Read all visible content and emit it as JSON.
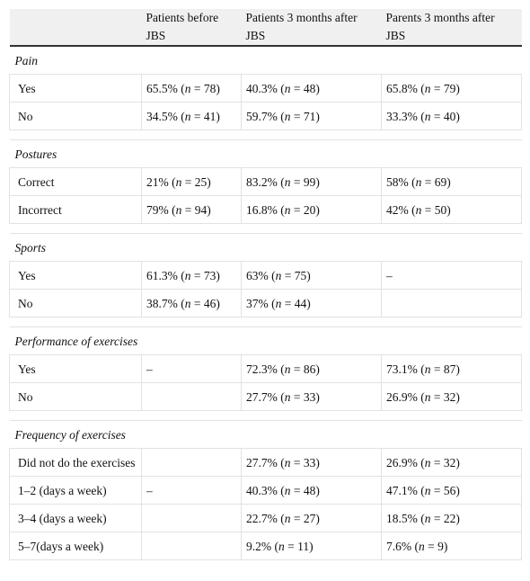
{
  "table": {
    "header": [
      null,
      "Patients before JBS",
      "Patients 3 months after JBS",
      "Parents 3 months after JBS"
    ],
    "sections": [
      {
        "title": "Pain",
        "rows": [
          [
            "Yes",
            "65.5% (n = 78)",
            "40.3% (n = 48)",
            "65.8% (n = 79)"
          ],
          [
            "No",
            "34.5% (n = 41)",
            "59.7% (n = 71)",
            "33.3% (n = 40)"
          ]
        ]
      },
      {
        "title": "Postures",
        "rows": [
          [
            "Correct",
            "21% (n = 25)",
            "83.2% (n = 99)",
            "58% (n = 69)"
          ],
          [
            "Incorrect",
            "79% (n = 94)",
            "16.8% (n = 20)",
            "42% (n = 50)"
          ]
        ]
      },
      {
        "title": "Sports",
        "rows": [
          [
            "Yes",
            "61.3% (n = 73)",
            "63% (n = 75)",
            "–"
          ],
          [
            "No",
            "38.7% (n = 46)",
            "37% (n = 44)",
            null
          ]
        ]
      },
      {
        "title": "Performance of exercises",
        "rows": [
          [
            "Yes",
            "–",
            "72.3% (n = 86)",
            "73.1% (n = 87)"
          ],
          [
            "No",
            null,
            "27.7% (n = 33)",
            "26.9% (n = 32)"
          ]
        ]
      },
      {
        "title": "Frequency of exercises",
        "rows": [
          [
            "Did not do the exercises",
            null,
            "27.7% (n = 33)",
            "26.9% (n = 32)"
          ],
          [
            "1–2 (days a week)",
            "–",
            "40.3% (n = 48)",
            "47.1% (n = 56)"
          ],
          [
            "3–4 (days a week)",
            null,
            "22.7% (n = 27)",
            "18.5% (n = 22)"
          ],
          [
            "5–7(days a week)",
            null,
            "9.2% (n = 11)",
            "7.6% (n = 9)"
          ]
        ]
      }
    ]
  }
}
